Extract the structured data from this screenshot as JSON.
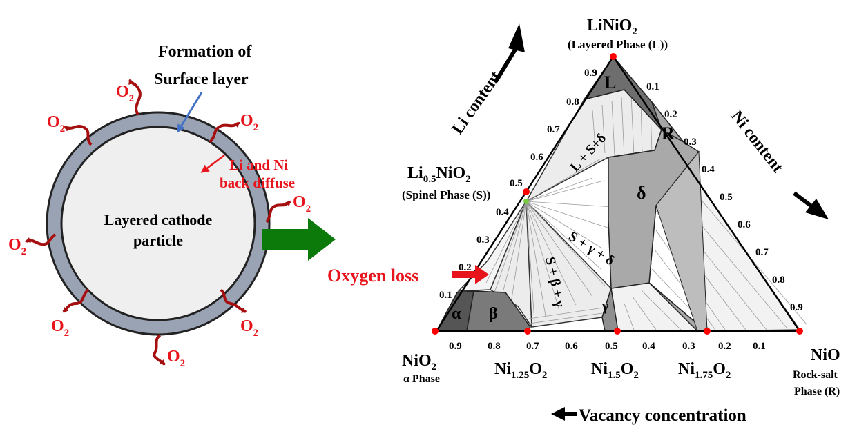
{
  "left_panel": {
    "formation_line1": "Formation of",
    "formation_line2": "Surface layer",
    "back_diffuse_line1": "Li and Ni",
    "back_diffuse_line2": "back diffuse",
    "particle_line1": "Layered cathode",
    "particle_line2": "particle",
    "o2_main": "O",
    "o2_sub": "2",
    "oxygen_loss": "Oxygen loss"
  },
  "vertices": {
    "top_main": "LiNiO",
    "top_sub": "2",
    "top_phase": "(Layered Phase (L))",
    "spinel_a": "Li",
    "spinel_sub1": "0.5",
    "spinel_b": "NiO",
    "spinel_sub2": "2",
    "spinel_phase": "(Spinel Phase (S))",
    "left_main": "NiO",
    "left_sub": "2",
    "left_phase": "α Phase",
    "right_main": "NiO",
    "right_phase1": "Rock-salt",
    "right_phase2": "Phase (R)"
  },
  "bottom_labels": [
    {
      "a": "Ni",
      "sub1": "1.25",
      "b": "O",
      "sub2": "2"
    },
    {
      "a": "Ni",
      "sub1": "1.5",
      "b": "O",
      "sub2": "2"
    },
    {
      "a": "Ni",
      "sub1": "1.75",
      "b": "O",
      "sub2": "2"
    }
  ],
  "axes": {
    "li_content": "Li content",
    "ni_content": "Ni content",
    "vacancy": "Vacancy concentration"
  },
  "ticks": {
    "left_edge": [
      "0.9",
      "0.8",
      "0.7",
      "0.6",
      "0.5",
      "0.4",
      "0.3",
      "0.2",
      "0.1"
    ],
    "right_edge": [
      "0.1",
      "0.2",
      "0.3",
      "0.4",
      "0.5",
      "0.6",
      "0.7",
      "0.8",
      "0.9"
    ],
    "bottom_edge": [
      "0.9",
      "0.8",
      "0.7",
      "0.6",
      "0.5",
      "0.4",
      "0.3",
      "0.2",
      "0.1"
    ]
  },
  "regions": {
    "L": "L",
    "R": "R",
    "delta": "δ",
    "alpha": "α",
    "beta": "β",
    "gamma": "γ",
    "l_s_delta": "L + S+δ",
    "s_gamma_delta": "S + γ + δ",
    "s_beta_gamma": "S + β + γ"
  },
  "colors": {
    "o2_red": "#e8141b",
    "arrow_dark_red": "#a50f0f",
    "green_arrow": "#0b7a0b",
    "shell_gray": "#9aa3b4",
    "core_fill": "#efefef",
    "blue_arrow": "#4472c4",
    "vertex_dot": "#ff0000"
  }
}
